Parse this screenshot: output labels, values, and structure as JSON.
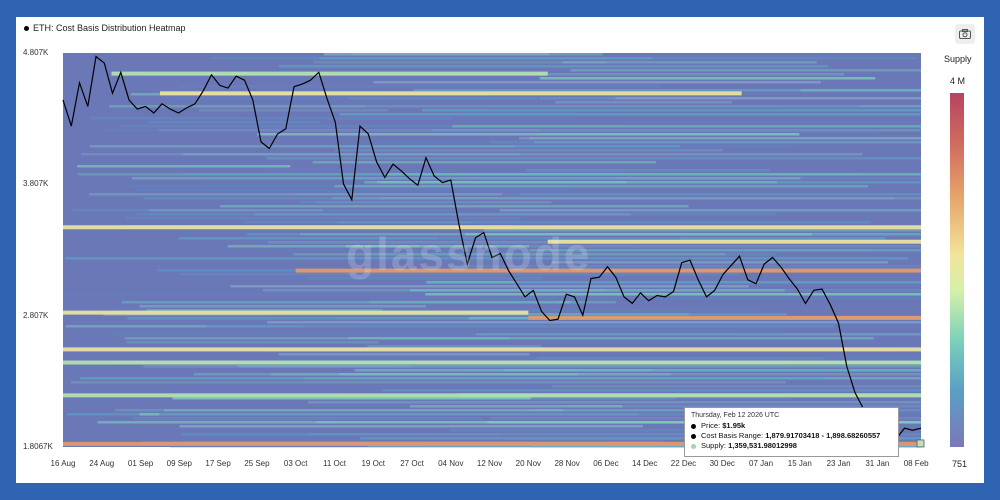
{
  "title": "ETH: Cost Basis Distribution Heatmap",
  "colorbar": {
    "label": "Supply",
    "max_label": "4 M",
    "min_label": "751"
  },
  "tooltip": {
    "date": "Thursday, Feb 12 2026 UTC",
    "price_label": "Price:",
    "price_value": "$1.95k",
    "range_label": "Cost Basis Range:",
    "range_value": "1,879.91703418 - 1,898.68260557",
    "supply_label": "Supply:",
    "supply_value": "1,359,531.98012998"
  },
  "watermark": "glassnode",
  "colors": {
    "background": "#2f64b3",
    "heatmap_base": "#6f79b9",
    "price_line": "#000000"
  },
  "chart_data": {
    "type": "heatmap",
    "title": "ETH: Cost Basis Distribution Heatmap",
    "y_ticks": [
      "4.807K",
      "3.807K",
      "2.807K",
      "1.8067K"
    ],
    "y_tick_values": [
      4807,
      3807,
      2807,
      1806.7
    ],
    "ylim": [
      1806.7,
      4807
    ],
    "x_ticks": [
      "16 Aug",
      "24 Aug",
      "01 Sep",
      "09 Sep",
      "17 Sep",
      "25 Sep",
      "03 Oct",
      "11 Oct",
      "19 Oct",
      "27 Oct",
      "04 Nov",
      "12 Nov",
      "20 Nov",
      "28 Nov",
      "06 Dec",
      "14 Dec",
      "22 Dec",
      "30 Dec",
      "07 Jan",
      "15 Jan",
      "23 Jan",
      "31 Jan",
      "08 Feb"
    ],
    "x_tick_index": [
      0,
      8,
      16,
      24,
      32,
      40,
      48,
      56,
      64,
      72,
      80,
      88,
      96,
      104,
      112,
      120,
      128,
      136,
      144,
      152,
      160,
      168,
      176
    ],
    "price_series": {
      "name": "Price",
      "x_start_index": 0,
      "values": [
        4450,
        4250,
        4580,
        4400,
        4780,
        4730,
        4500,
        4660,
        4450,
        4380,
        4400,
        4350,
        4420,
        4380,
        4350,
        4390,
        4420,
        4520,
        4640,
        4560,
        4540,
        4630,
        4600,
        4450,
        4130,
        4080,
        4190,
        4230,
        4550,
        4570,
        4600,
        4660,
        4460,
        4280,
        3810,
        3690,
        4250,
        4190,
        3980,
        3860,
        3960,
        3910,
        3850,
        3800,
        4010,
        3870,
        3820,
        3840,
        3500,
        3200,
        3400,
        3440,
        3250,
        3280,
        3150,
        3050,
        2950,
        3000,
        2840,
        2770,
        2780,
        2970,
        2950,
        2810,
        3090,
        3100,
        3180,
        3100,
        2950,
        2900,
        2980,
        2920,
        2960,
        2950,
        2990,
        3210,
        3230,
        3080,
        2950,
        3000,
        3120,
        3190,
        3260,
        3080,
        3050,
        3200,
        3250,
        3180,
        3090,
        3010,
        2900,
        3000,
        3010,
        2890,
        2750,
        2420,
        2220,
        2100,
        2050,
        1980,
        1990,
        1870,
        1950,
        1935,
        1950
      ]
    },
    "highlight_bands": [
      {
        "y": 2790,
        "level": "high",
        "from_index": 96,
        "to_index": 177
      },
      {
        "y": 3150,
        "level": "high",
        "from_index": 48,
        "to_index": 177
      },
      {
        "y": 2830,
        "level": "medium",
        "from_index": 0,
        "to_index": 96
      },
      {
        "y": 4500,
        "level": "medium",
        "from_index": 20,
        "to_index": 140
      },
      {
        "y": 3370,
        "level": "medium",
        "from_index": 100,
        "to_index": 177
      },
      {
        "y": 3480,
        "level": "medium",
        "from_index": 0,
        "to_index": 177
      },
      {
        "y": 2550,
        "level": "medium",
        "from_index": 0,
        "to_index": 177
      },
      {
        "y": 2450,
        "level": "low",
        "from_index": 0,
        "to_index": 177
      },
      {
        "y": 2200,
        "level": "low",
        "from_index": 0,
        "to_index": 177
      },
      {
        "y": 1830,
        "level": "high",
        "from_index": 0,
        "to_index": 177
      },
      {
        "y": 4650,
        "level": "low",
        "from_index": 10,
        "to_index": 100
      }
    ]
  }
}
